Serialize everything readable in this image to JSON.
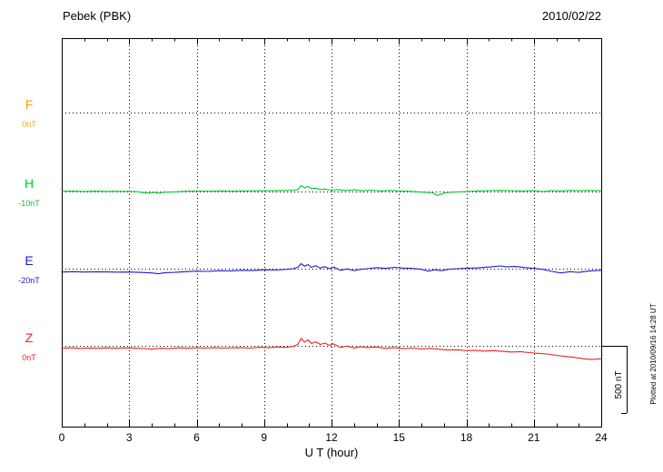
{
  "header": {
    "title": "Pebek (PBK)",
    "date": "2010/02/22"
  },
  "chart_data": {
    "type": "line",
    "title": "Pebek (PBK)",
    "date": "2010/02/22",
    "xlabel": "U T (hour)",
    "x_range": [
      0,
      24
    ],
    "x_ticks": [
      0,
      3,
      6,
      9,
      12,
      15,
      18,
      21,
      24
    ],
    "grid": "dotted",
    "y_unit": "nT deviation from channel baseline",
    "scale_bar": {
      "label": "500 nT",
      "nT": 500
    },
    "plotted_at": "Plotted at 2010/09/16 14:28 UT",
    "channels": [
      {
        "id": "F",
        "label": "F",
        "baseline_label": "0nT",
        "color": "#ffa000",
        "points": []
      },
      {
        "id": "H",
        "label": "H",
        "baseline_label": "-10nT",
        "color": "#00c832",
        "points": [
          [
            0,
            2
          ],
          [
            0.5,
            3
          ],
          [
            1,
            1
          ],
          [
            1.5,
            3
          ],
          [
            2,
            1
          ],
          [
            2.5,
            2
          ],
          [
            3,
            1
          ],
          [
            3.3,
            0
          ],
          [
            3.6,
            -8
          ],
          [
            3.9,
            -12
          ],
          [
            4.1,
            -6
          ],
          [
            4.3,
            -12
          ],
          [
            4.6,
            -5
          ],
          [
            5,
            -3
          ],
          [
            5.5,
            2
          ],
          [
            6,
            3
          ],
          [
            6.5,
            2
          ],
          [
            7,
            4
          ],
          [
            7.5,
            3
          ],
          [
            8,
            4
          ],
          [
            8.5,
            5
          ],
          [
            9,
            6
          ],
          [
            9.5,
            6
          ],
          [
            10,
            8
          ],
          [
            10.3,
            10
          ],
          [
            10.5,
            14
          ],
          [
            10.65,
            45
          ],
          [
            10.8,
            28
          ],
          [
            10.95,
            38
          ],
          [
            11.1,
            22
          ],
          [
            11.3,
            25
          ],
          [
            11.5,
            14
          ],
          [
            11.7,
            18
          ],
          [
            12,
            10
          ],
          [
            12.3,
            14
          ],
          [
            12.6,
            8
          ],
          [
            13,
            12
          ],
          [
            13.4,
            6
          ],
          [
            13.8,
            10
          ],
          [
            14.2,
            4
          ],
          [
            14.6,
            8
          ],
          [
            15,
            4
          ],
          [
            15.4,
            2
          ],
          [
            15.8,
            -2
          ],
          [
            16.2,
            -6
          ],
          [
            16.5,
            -10
          ],
          [
            16.7,
            -30
          ],
          [
            16.9,
            -18
          ],
          [
            17.1,
            -8
          ],
          [
            17.5,
            -4
          ],
          [
            18,
            0
          ],
          [
            18.5,
            4
          ],
          [
            19,
            6
          ],
          [
            19.5,
            8
          ],
          [
            20,
            6
          ],
          [
            20.5,
            4
          ],
          [
            21,
            6
          ],
          [
            21.4,
            0
          ],
          [
            21.8,
            6
          ],
          [
            22.2,
            4
          ],
          [
            22.6,
            8
          ],
          [
            23,
            6
          ],
          [
            23.4,
            8
          ],
          [
            23.7,
            6
          ],
          [
            24,
            8
          ]
        ]
      },
      {
        "id": "E",
        "label": "E",
        "baseline_label": "-20nT",
        "color": "#1a1ad0",
        "points": [
          [
            0,
            -25
          ],
          [
            0.5,
            -22
          ],
          [
            1,
            -25
          ],
          [
            1.5,
            -23
          ],
          [
            2,
            -24
          ],
          [
            2.5,
            -26
          ],
          [
            3,
            -25
          ],
          [
            3.5,
            -28
          ],
          [
            4,
            -32
          ],
          [
            4.3,
            -38
          ],
          [
            4.6,
            -30
          ],
          [
            5,
            -28
          ],
          [
            5.5,
            -22
          ],
          [
            6,
            -18
          ],
          [
            6.5,
            -20
          ],
          [
            7,
            -15
          ],
          [
            7.5,
            -17
          ],
          [
            8,
            -12
          ],
          [
            8.5,
            -14
          ],
          [
            9,
            -8
          ],
          [
            9.5,
            -10
          ],
          [
            10,
            -5
          ],
          [
            10.3,
            0
          ],
          [
            10.5,
            10
          ],
          [
            10.65,
            38
          ],
          [
            10.8,
            18
          ],
          [
            10.95,
            30
          ],
          [
            11.1,
            10
          ],
          [
            11.3,
            22
          ],
          [
            11.5,
            5
          ],
          [
            11.7,
            15
          ],
          [
            11.9,
            0
          ],
          [
            12.1,
            12
          ],
          [
            12.4,
            -12
          ],
          [
            12.7,
            -2
          ],
          [
            13,
            -14
          ],
          [
            13.3,
            -5
          ],
          [
            13.6,
            0
          ],
          [
            14,
            8
          ],
          [
            14.4,
            2
          ],
          [
            14.8,
            10
          ],
          [
            15.2,
            5
          ],
          [
            15.6,
            2
          ],
          [
            16,
            -5
          ],
          [
            16.3,
            -18
          ],
          [
            16.6,
            -8
          ],
          [
            16.9,
            -15
          ],
          [
            17.2,
            -5
          ],
          [
            17.6,
            0
          ],
          [
            18,
            3
          ],
          [
            18.5,
            6
          ],
          [
            19,
            12
          ],
          [
            19.5,
            20
          ],
          [
            19.8,
            14
          ],
          [
            20.2,
            16
          ],
          [
            20.6,
            8
          ],
          [
            21,
            2
          ],
          [
            21.4,
            -5
          ],
          [
            21.8,
            -20
          ],
          [
            22.2,
            -32
          ],
          [
            22.6,
            -22
          ],
          [
            23,
            -28
          ],
          [
            23.4,
            -18
          ],
          [
            23.7,
            -15
          ],
          [
            24,
            -12
          ]
        ]
      },
      {
        "id": "Z",
        "label": "Z",
        "baseline_label": "0nT",
        "color": "#ee2020",
        "points": [
          [
            0,
            -18
          ],
          [
            0.4,
            -15
          ],
          [
            0.8,
            -19
          ],
          [
            1.2,
            -16
          ],
          [
            1.6,
            -18
          ],
          [
            2,
            -15
          ],
          [
            2.4,
            -18
          ],
          [
            2.8,
            -15
          ],
          [
            3.2,
            -16
          ],
          [
            3.6,
            -20
          ],
          [
            4,
            -24
          ],
          [
            4.4,
            -18
          ],
          [
            4.8,
            -21
          ],
          [
            5.2,
            -15
          ],
          [
            5.6,
            -18
          ],
          [
            6,
            -14
          ],
          [
            6.4,
            -17
          ],
          [
            6.8,
            -14
          ],
          [
            7.2,
            -17
          ],
          [
            7.6,
            -15
          ],
          [
            8,
            -14
          ],
          [
            8.4,
            -17
          ],
          [
            8.8,
            -11
          ],
          [
            9.2,
            -14
          ],
          [
            9.6,
            -9
          ],
          [
            10,
            -11
          ],
          [
            10.3,
            -4
          ],
          [
            10.5,
            10
          ],
          [
            10.65,
            55
          ],
          [
            10.8,
            28
          ],
          [
            10.95,
            45
          ],
          [
            11.1,
            18
          ],
          [
            11.3,
            30
          ],
          [
            11.5,
            10
          ],
          [
            11.7,
            20
          ],
          [
            11.9,
            4
          ],
          [
            12.1,
            14
          ],
          [
            12.4,
            -12
          ],
          [
            12.7,
            -2
          ],
          [
            13,
            -16
          ],
          [
            13.3,
            -6
          ],
          [
            13.6,
            -13
          ],
          [
            14,
            -9
          ],
          [
            14.4,
            -19
          ],
          [
            14.8,
            -13
          ],
          [
            15.2,
            -21
          ],
          [
            15.6,
            -17
          ],
          [
            16,
            -23
          ],
          [
            16.4,
            -19
          ],
          [
            16.8,
            -26
          ],
          [
            17.2,
            -31
          ],
          [
            17.6,
            -29
          ],
          [
            18,
            -36
          ],
          [
            18.4,
            -33
          ],
          [
            18.8,
            -39
          ],
          [
            19.2,
            -36
          ],
          [
            19.6,
            -41
          ],
          [
            20,
            -46
          ],
          [
            20.4,
            -43
          ],
          [
            20.8,
            -51
          ],
          [
            21.2,
            -56
          ],
          [
            21.6,
            -61
          ],
          [
            22,
            -71
          ],
          [
            22.4,
            -79
          ],
          [
            22.8,
            -86
          ],
          [
            23.2,
            -96
          ],
          [
            23.5,
            -101
          ],
          [
            23.8,
            -99
          ],
          [
            24,
            -96
          ]
        ]
      }
    ]
  }
}
